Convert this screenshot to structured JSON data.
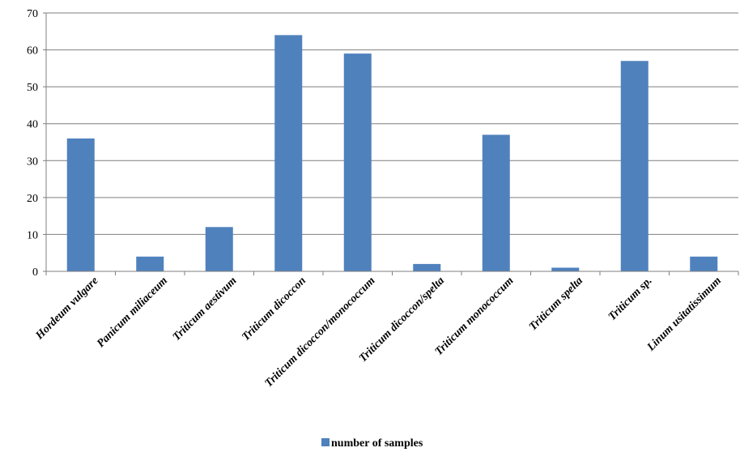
{
  "chart_data": {
    "type": "bar",
    "categories": [
      "Hordeum vulgare",
      "Panicum miliaceum",
      "Triticum aestivum",
      "Triticum dicoccon",
      "Triticum dicoccon/monococcum",
      "Triticum dicoccon/spelta",
      "Triticum monococcum",
      "Triticum spelta",
      "Triticum sp.",
      "Linum usitatissimum"
    ],
    "series": [
      {
        "name": "number of samples",
        "values": [
          36,
          4,
          12,
          64,
          59,
          2,
          37,
          1,
          57,
          4
        ],
        "color": "#4f81bd"
      }
    ],
    "ylim": [
      0,
      70
    ],
    "yticks": [
      0,
      10,
      20,
      30,
      40,
      50,
      60,
      70
    ],
    "grid": true,
    "legend": "bottom"
  }
}
